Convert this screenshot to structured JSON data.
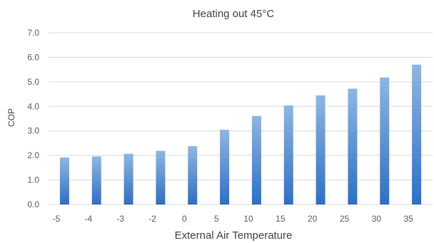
{
  "chart_data": {
    "type": "bar",
    "title": "Heating out 45°C",
    "xlabel": "External Air Temperature",
    "ylabel": "COP",
    "categories": [
      "-5",
      "-4",
      "-3",
      "-2",
      "0",
      "5",
      "10",
      "15",
      "20",
      "25",
      "30",
      "35"
    ],
    "values": [
      1.92,
      1.96,
      2.07,
      2.19,
      2.38,
      3.05,
      3.61,
      4.04,
      4.45,
      4.72,
      5.18,
      5.7
    ],
    "ylim": [
      0,
      7
    ],
    "yticks": [
      "0.0",
      "1.0",
      "2.0",
      "3.0",
      "4.0",
      "5.0",
      "6.0",
      "7.0"
    ],
    "grid": true,
    "legend": "none",
    "colors": {
      "bar_top": "#8fb6e0",
      "bar_bottom": "#2f6fc2",
      "grid": "#d9d9d9"
    }
  }
}
